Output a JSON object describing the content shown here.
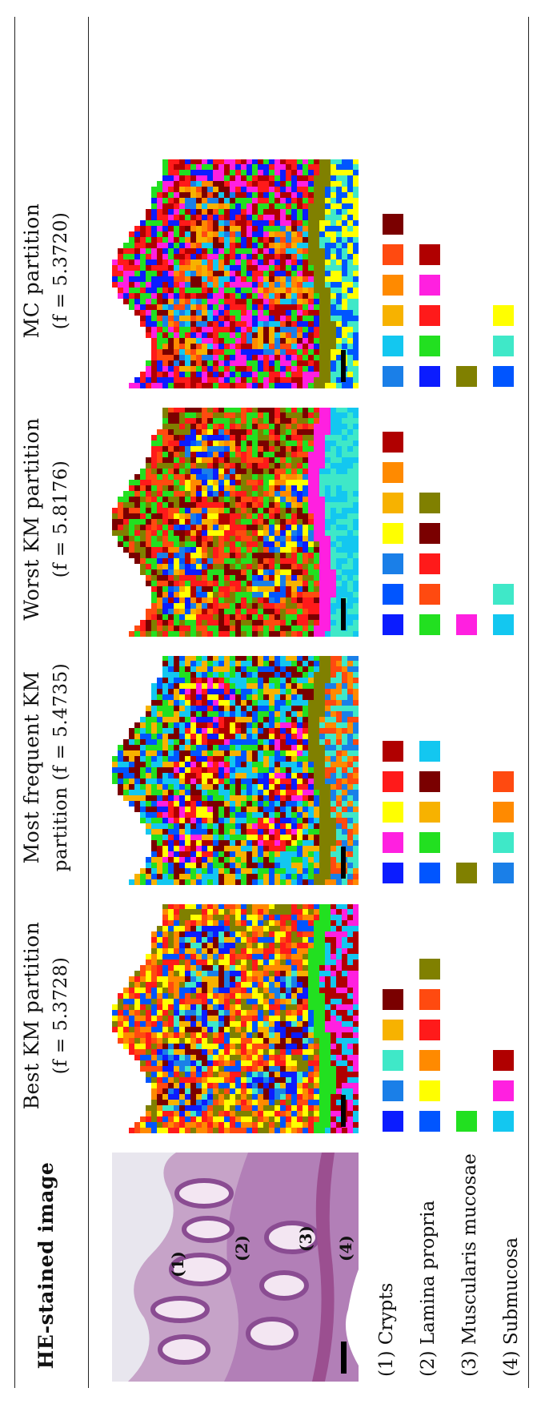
{
  "columns": [
    {
      "title": "HE-stained image",
      "subtitle": ""
    },
    {
      "title": "Best KM partition",
      "subtitle": "(f = 5.3728)"
    },
    {
      "title": "Most frequent KM",
      "subtitle": "partition (f = 5.4735)"
    },
    {
      "title": "Worst KM partition",
      "subtitle": "(f = 5.8176)"
    },
    {
      "title": "MC partition",
      "subtitle": "(f = 5.3720)"
    }
  ],
  "he_annotations": [
    "(1)",
    "(2)",
    "(3)",
    "(4)"
  ],
  "regions": [
    {
      "label": "(1) Crypts"
    },
    {
      "label": "(2) Lamina propria"
    },
    {
      "label": "(3) Muscularis mucosae"
    },
    {
      "label": "(4) Submucosa"
    }
  ],
  "legends": {
    "best_km": [
      [
        "#0b1cff",
        "#1a7fe8",
        "#3fe8c8",
        "#f7b200",
        "#7a0000"
      ],
      [
        "#0055ff",
        "#ffff00",
        "#ff8a00",
        "#ff1a1a",
        "#ff4a10",
        "#808000"
      ],
      [
        "#22e020"
      ],
      [
        "#13c7f0",
        "#ff20e0",
        "#b00000"
      ]
    ],
    "most_frequent_km": [
      [
        "#0b1cff",
        "#ff20e0",
        "#ffff00",
        "#ff1a1a",
        "#b00000"
      ],
      [
        "#0055ff",
        "#22e020",
        "#f7b200",
        "#7a0000",
        "#13c7f0"
      ],
      [
        "#808000"
      ],
      [
        "#1a7fe8",
        "#3fe8c8",
        "#ff8a00",
        "#ff4a10"
      ]
    ],
    "worst_km": [
      [
        "#0b1cff",
        "#0055ff",
        "#1a7fe8",
        "#ffff00",
        "#f7b200",
        "#ff8a00",
        "#b00000"
      ],
      [
        "#22e020",
        "#ff4a10",
        "#ff1a1a",
        "#7a0000",
        "#808000"
      ],
      [
        "#ff20e0"
      ],
      [
        "#13c7f0",
        "#3fe8c8"
      ]
    ],
    "mc": [
      [
        "#1a7fe8",
        "#13c7f0",
        "#f7b200",
        "#ff8a00",
        "#ff4a10",
        "#7a0000"
      ],
      [
        "#0b1cff",
        "#22e020",
        "#ff1a1a",
        "#ff20e0",
        "#b00000"
      ],
      [
        "#808000"
      ],
      [
        "#0055ff",
        "#3fe8c8",
        "#ffff00"
      ]
    ]
  }
}
